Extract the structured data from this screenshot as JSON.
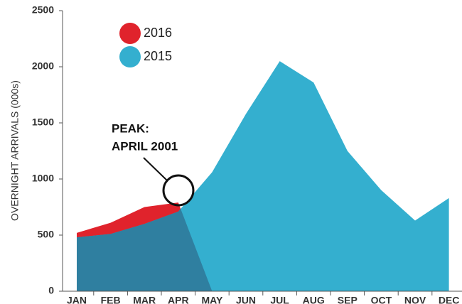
{
  "chart_data": {
    "type": "area",
    "ylabel": "OVERNIGHT ARRIVALS (000s)",
    "categories": [
      "JAN",
      "FEB",
      "MAR",
      "APR",
      "MAY",
      "JUN",
      "JUL",
      "AUG",
      "SEP",
      "OCT",
      "NOV",
      "DEC"
    ],
    "series": [
      {
        "name": "2016",
        "color": "#e0232c",
        "values": [
          520,
          610,
          750,
          790,
          0,
          null,
          null,
          null,
          null,
          null,
          null,
          null
        ]
      },
      {
        "name": "2015",
        "color": "#34afcf",
        "values": [
          480,
          510,
          600,
          710,
          1060,
          1580,
          2050,
          1860,
          1250,
          900,
          630,
          830
        ]
      }
    ],
    "overlap_color": "#2f7fa0",
    "ylim": [
      0,
      2500
    ],
    "yticks": [
      0,
      500,
      1000,
      1500,
      2000,
      2500
    ],
    "annotation": [
      "PEAK:",
      "APRIL 2001"
    ]
  }
}
